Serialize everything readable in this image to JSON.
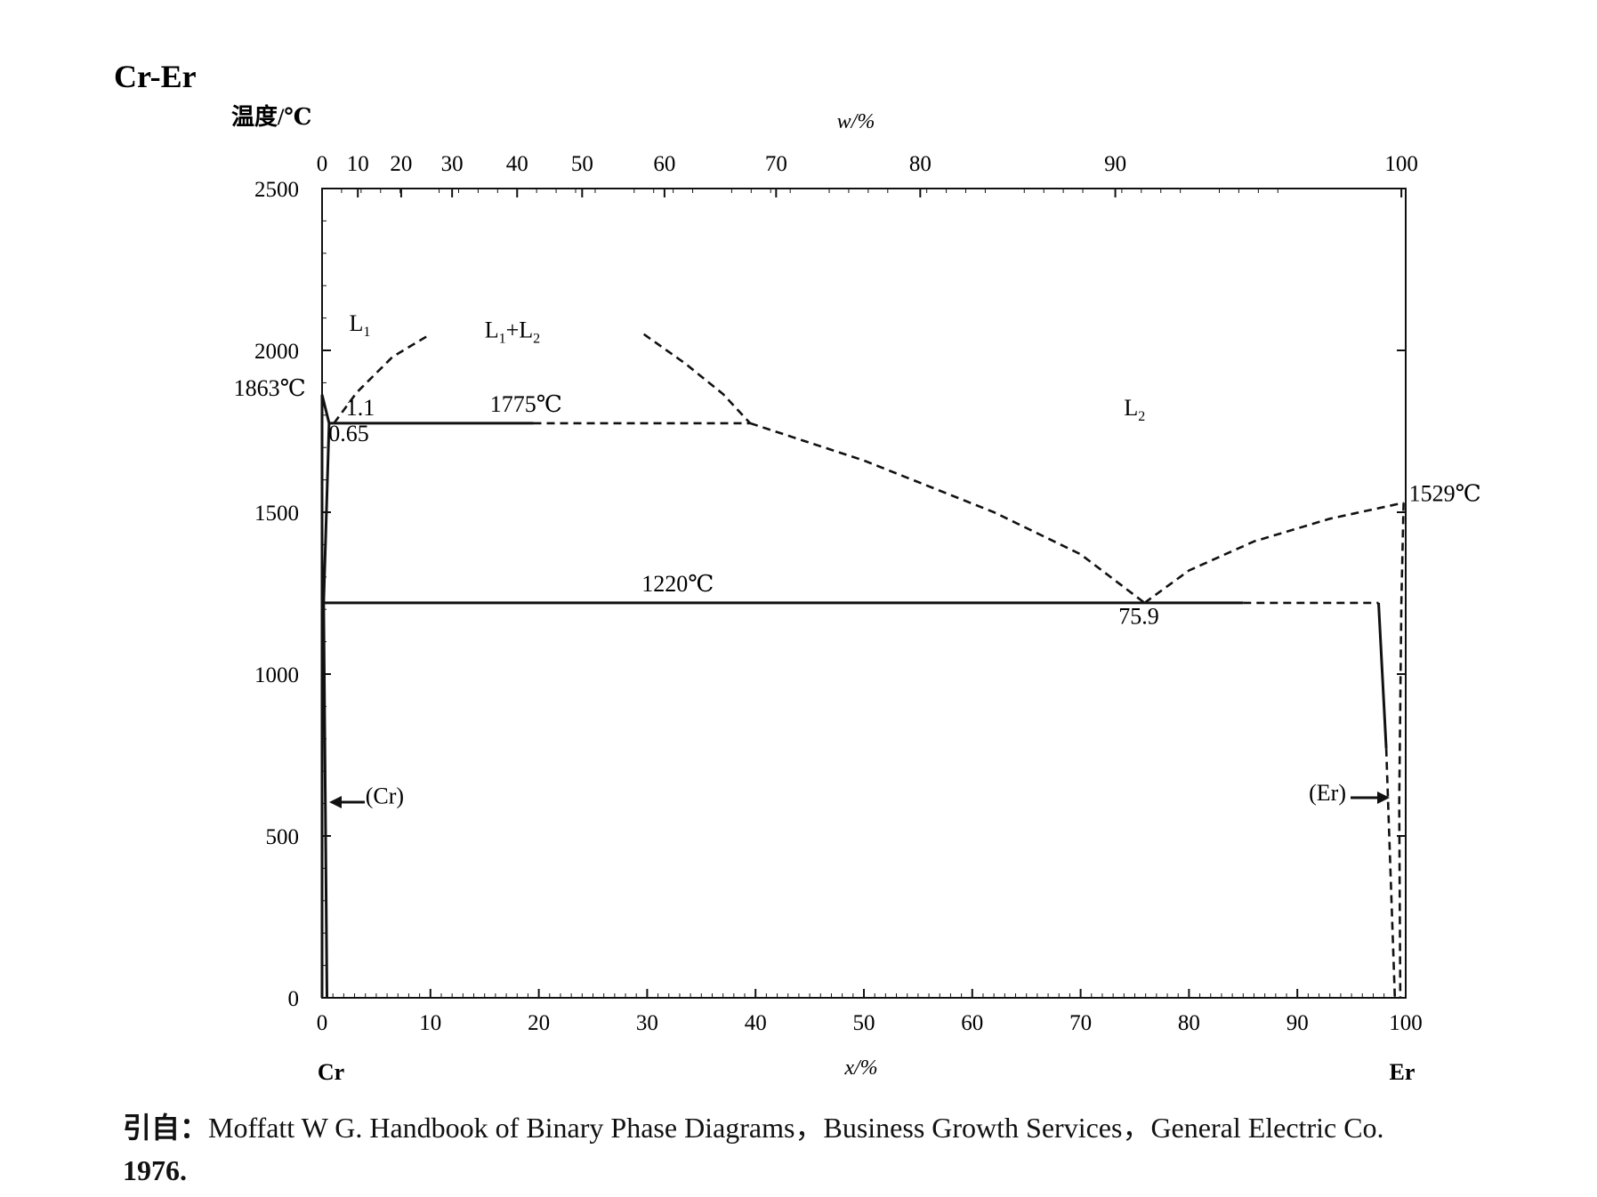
{
  "chart_data": {
    "type": "line",
    "title": "Cr-Er",
    "ylabel": "温度/℃",
    "xlabel_bottom": "x/%",
    "xlabel_top": "w/%",
    "ylim": [
      0,
      2500
    ],
    "xlim": [
      0,
      100
    ],
    "y_ticks": [
      0,
      500,
      1000,
      1500,
      2000,
      2500
    ],
    "x_ticks_bottom": [
      0,
      10,
      20,
      30,
      40,
      50,
      60,
      70,
      80,
      90,
      100
    ],
    "x_ticks_top": [
      0,
      10,
      20,
      30,
      40,
      50,
      60,
      70,
      80,
      90,
      100
    ],
    "left_component": "Cr",
    "right_component": "Er",
    "series": [
      {
        "style": "solid",
        "points": [
          [
            0,
            1863
          ],
          [
            0.65,
            1775
          ]
        ]
      },
      {
        "style": "solid",
        "points": [
          [
            0,
            1863
          ],
          [
            0,
            1775
          ],
          [
            0,
            0
          ]
        ]
      },
      {
        "style": "solid",
        "points": [
          [
            0.65,
            1775
          ],
          [
            0.4,
            1500
          ],
          [
            0.15,
            1220
          ],
          [
            0.3,
            600
          ],
          [
            0.45,
            0
          ]
        ]
      },
      {
        "style": "solid",
        "points": [
          [
            0.65,
            1775
          ],
          [
            19.5,
            1775
          ]
        ]
      },
      {
        "style": "dashed",
        "points": [
          [
            19.5,
            1775
          ],
          [
            39.5,
            1775
          ]
        ]
      },
      {
        "style": "dashed",
        "points": [
          [
            1.1,
            1775
          ],
          [
            3.2,
            1870
          ],
          [
            6.5,
            1980
          ],
          [
            10,
            2050
          ]
        ]
      },
      {
        "style": "dashed",
        "points": [
          [
            29.7,
            2050
          ],
          [
            33.5,
            1960
          ],
          [
            37,
            1865
          ],
          [
            39.5,
            1775
          ]
        ]
      },
      {
        "style": "dashed",
        "points": [
          [
            39.5,
            1775
          ],
          [
            50,
            1660
          ],
          [
            62,
            1500
          ],
          [
            70,
            1370
          ],
          [
            75.9,
            1220
          ]
        ]
      },
      {
        "style": "dashed",
        "points": [
          [
            75.9,
            1220
          ],
          [
            80,
            1320
          ],
          [
            86,
            1410
          ],
          [
            93,
            1480
          ],
          [
            99.8,
            1529
          ]
        ]
      },
      {
        "style": "solid",
        "points": [
          [
            0.15,
            1220
          ],
          [
            85,
            1220
          ]
        ]
      },
      {
        "style": "dashed",
        "points": [
          [
            85,
            1220
          ],
          [
            97.5,
            1220
          ]
        ]
      },
      {
        "style": "solid",
        "points": [
          [
            97.5,
            1220
          ],
          [
            98.2,
            770
          ]
        ]
      },
      {
        "style": "dashed",
        "points": [
          [
            98.2,
            770
          ],
          [
            99.0,
            0
          ]
        ]
      },
      {
        "style": "dashed",
        "points": [
          [
            99.8,
            1529
          ],
          [
            99.6,
            1220
          ],
          [
            99.4,
            600
          ],
          [
            99.5,
            0
          ]
        ]
      }
    ],
    "annotations": [
      {
        "text": "L",
        "sub": "1",
        "x": 2.5,
        "y": 2060,
        "anchor": "start"
      },
      {
        "text": "L",
        "sub": "1",
        "x2": "L",
        "sub2": "2",
        "x": 15,
        "y": 2040,
        "anchor": "start",
        "combo": true
      },
      {
        "text": "L",
        "sub": "2",
        "x": 74,
        "y": 1800,
        "anchor": "start"
      },
      {
        "text": "1863℃",
        "x": -1.5,
        "y": 1860,
        "anchor": "end"
      },
      {
        "text": "1.1",
        "x": 2.2,
        "y": 1800,
        "anchor": "start"
      },
      {
        "text": "0.65",
        "x": 0.6,
        "y": 1720,
        "anchor": "start"
      },
      {
        "text": "1775℃",
        "x": 15.5,
        "y": 1810,
        "anchor": "start"
      },
      {
        "text": "1220℃",
        "x": 29.5,
        "y": 1255,
        "anchor": "start"
      },
      {
        "text": "75.9",
        "x": 73.5,
        "y": 1155,
        "anchor": "start"
      },
      {
        "text": "1529℃",
        "x": 100.3,
        "y": 1535,
        "anchor": "start"
      },
      {
        "text": "(Cr)",
        "x": 4,
        "y": 600,
        "anchor": "start"
      },
      {
        "text": "(Er)",
        "x": 94.5,
        "y": 610,
        "anchor": "end"
      }
    ]
  },
  "reference": {
    "prefix": "引自：",
    "text": "Moffatt W G.  Handbook of Binary Phase Diagrams，Business Growth Services，General Electric Co.",
    "year": "1976."
  }
}
